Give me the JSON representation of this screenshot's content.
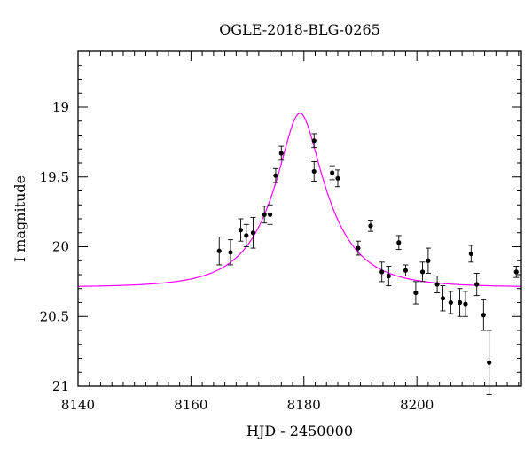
{
  "chart_data": {
    "type": "scatter",
    "title": "OGLE-2018-BLG-0265",
    "xlabel": "HJD - 2450000",
    "ylabel": "I magnitude",
    "xlim": [
      8140,
      8218.5
    ],
    "ylim": [
      21,
      18.6
    ],
    "y_inverted": true,
    "x_ticks": [
      8140,
      8160,
      8180,
      8200
    ],
    "x_tick_labels": [
      "8140",
      "8160",
      "8180",
      "8200"
    ],
    "y_ticks": [
      19,
      19.5,
      20,
      20.5,
      21
    ],
    "y_tick_labels": [
      "19",
      "19.5",
      "20",
      "20.5",
      "21"
    ],
    "grid": false,
    "series": [
      {
        "type": "errorbar",
        "color": "#000000",
        "points": [
          {
            "x": 8165.0,
            "y": 20.03,
            "err": 0.1
          },
          {
            "x": 8167.0,
            "y": 20.04,
            "err": 0.09
          },
          {
            "x": 8168.8,
            "y": 19.88,
            "err": 0.08
          },
          {
            "x": 8169.8,
            "y": 19.92,
            "err": 0.08
          },
          {
            "x": 8171.0,
            "y": 19.9,
            "err": 0.11
          },
          {
            "x": 8173.0,
            "y": 19.77,
            "err": 0.06
          },
          {
            "x": 8174.0,
            "y": 19.77,
            "err": 0.07
          },
          {
            "x": 8175.0,
            "y": 19.49,
            "err": 0.05
          },
          {
            "x": 8176.0,
            "y": 19.33,
            "err": 0.05
          },
          {
            "x": 8181.8,
            "y": 19.24,
            "err": 0.05
          },
          {
            "x": 8181.8,
            "y": 19.46,
            "err": 0.07
          },
          {
            "x": 8185.0,
            "y": 19.47,
            "err": 0.05
          },
          {
            "x": 8186.0,
            "y": 19.51,
            "err": 0.06
          },
          {
            "x": 8189.6,
            "y": 20.01,
            "err": 0.05
          },
          {
            "x": 8191.8,
            "y": 19.85,
            "err": 0.04
          },
          {
            "x": 8193.8,
            "y": 20.18,
            "err": 0.07
          },
          {
            "x": 8195.0,
            "y": 20.21,
            "err": 0.07
          },
          {
            "x": 8196.8,
            "y": 19.97,
            "err": 0.05
          },
          {
            "x": 8198.0,
            "y": 20.17,
            "err": 0.04
          },
          {
            "x": 8199.8,
            "y": 20.33,
            "err": 0.08
          },
          {
            "x": 8201.0,
            "y": 20.18,
            "err": 0.07
          },
          {
            "x": 8202.0,
            "y": 20.1,
            "err": 0.09
          },
          {
            "x": 8203.6,
            "y": 20.27,
            "err": 0.06
          },
          {
            "x": 8204.6,
            "y": 20.37,
            "err": 0.09
          },
          {
            "x": 8206.0,
            "y": 20.4,
            "err": 0.08
          },
          {
            "x": 8207.6,
            "y": 20.4,
            "err": 0.1
          },
          {
            "x": 8208.6,
            "y": 20.41,
            "err": 0.09
          },
          {
            "x": 8209.6,
            "y": 20.05,
            "err": 0.06
          },
          {
            "x": 8210.6,
            "y": 20.27,
            "err": 0.08
          },
          {
            "x": 8211.8,
            "y": 20.49,
            "err": 0.11
          },
          {
            "x": 8212.8,
            "y": 20.83,
            "err": 0.23
          },
          {
            "x": 8217.6,
            "y": 20.18,
            "err": 0.04
          }
        ]
      },
      {
        "type": "line",
        "color": "#ff00ff",
        "model": {
          "baseline": 20.29,
          "t0": 8179.3,
          "u0": 0.33,
          "tE": 9.5
        }
      }
    ]
  }
}
